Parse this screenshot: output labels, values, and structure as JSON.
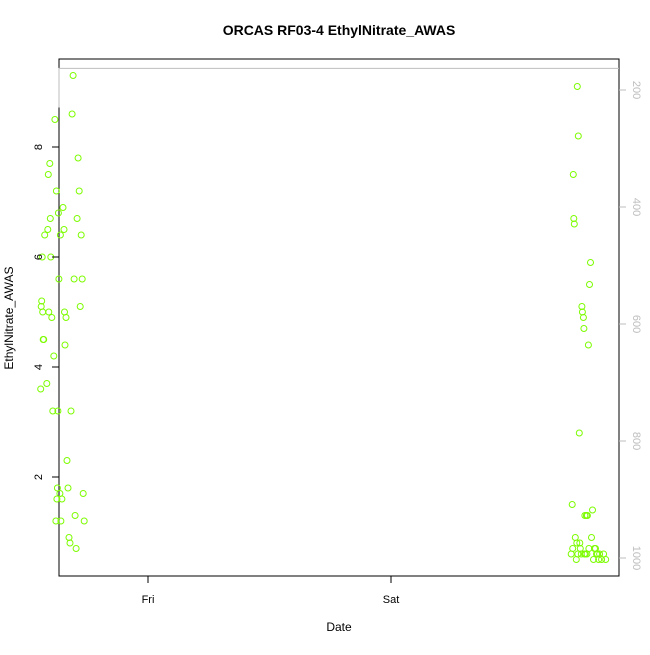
{
  "chart_data": {
    "type": "scatter",
    "title": "ORCAS RF03-4 EthylNitrate_AWAS",
    "xlabel": "Date",
    "ylabel": "EthylNitrate_AWAS",
    "x_ticks": [
      "Fri",
      "Sat"
    ],
    "y_ticks": [
      2,
      4,
      6,
      8
    ],
    "y2_ticks": [
      200,
      400,
      600,
      800,
      1000
    ],
    "ylim": [
      0.2,
      9.6
    ],
    "y2lim": [
      1025,
      163
    ],
    "grid": false,
    "legend": "none",
    "colors": {
      "points": "#7CFC00",
      "line": "#bebebe",
      "axis": "#000000",
      "axis2": "#bebebe"
    },
    "x_unit": "hours since Friday 00:00",
    "series": [
      {
        "style": "points",
        "x": [
          -10.6,
          -10.5,
          -10.45,
          -10.4,
          -10.3,
          -10.2,
          -10.0,
          -9.9,
          -9.85,
          -9.8,
          -9.7,
          -9.6,
          -9.5,
          -9.4,
          -9.3,
          -9.2,
          -9.1,
          -9.0,
          -8.95,
          -8.9,
          -8.85,
          -8.8,
          -8.7,
          -8.6,
          -8.5,
          -8.4,
          -8.3,
          -8.2,
          -8.1,
          -8.0,
          -7.9,
          -7.8,
          -7.7,
          -7.6,
          -7.5,
          -7.4,
          -7.3,
          -7.2,
          -7.1,
          -7.0,
          -6.9,
          -6.8,
          -6.7,
          -6.6,
          -6.5,
          -6.4,
          -6.3,
          -10.55,
          -10.35,
          -9.65,
          -9.05,
          -8.65,
          -8.25
        ],
        "y": [
          3.6,
          5.2,
          6.0,
          5.0,
          4.5,
          6.4,
          3.7,
          6.5,
          7.5,
          5.0,
          7.7,
          6.0,
          4.9,
          3.2,
          4.2,
          8.5,
          1.2,
          1.6,
          1.8,
          3.2,
          6.8,
          5.6,
          1.7,
          1.2,
          1.6,
          6.9,
          6.5,
          4.4,
          4.9,
          2.3,
          1.8,
          0.9,
          0.8,
          3.2,
          8.6,
          9.3,
          5.6,
          1.3,
          0.7,
          6.7,
          7.8,
          7.2,
          5.1,
          6.4,
          5.6,
          1.7,
          1.2,
          5.1,
          4.5,
          6.7,
          7.2,
          6.4,
          5.0
        ]
      },
      {
        "style": "points",
        "x": [
          41.8,
          41.9,
          42.0,
          42.05,
          42.1,
          42.2,
          42.3,
          42.35,
          42.4,
          42.5,
          42.6,
          42.65,
          42.7,
          42.8,
          42.85,
          42.9,
          43.0,
          43.05,
          43.1,
          43.2,
          43.3,
          43.35,
          43.4,
          43.5,
          43.6,
          43.7,
          43.8,
          43.9,
          44.0,
          44.1,
          44.2,
          44.3,
          44.4,
          44.5,
          44.6,
          44.8,
          45.0,
          45.2,
          41.95,
          42.45,
          43.15,
          43.55
        ],
        "y": [
          0.6,
          1.5,
          7.5,
          6.7,
          6.6,
          0.9,
          0.5,
          0.8,
          9.1,
          8.2,
          2.8,
          0.8,
          0.7,
          0.6,
          5.1,
          5.0,
          4.9,
          4.7,
          0.6,
          0.6,
          1.3,
          0.6,
          1.3,
          4.4,
          5.5,
          5.9,
          0.9,
          1.4,
          0.5,
          0.7,
          0.7,
          0.6,
          0.6,
          0.5,
          0.6,
          0.5,
          0.6,
          0.5,
          0.7,
          0.6,
          1.3,
          0.7
        ]
      },
      {
        "style": "line",
        "axis": "right",
        "x": [
          -10.6,
          -10.5,
          -10.4,
          -10.3,
          -10.2,
          -10.0,
          -9.9,
          -9.8,
          -9.7,
          -9.6,
          -9.5,
          -9.45,
          -9.4,
          -9.3,
          -9.2,
          -9.1,
          -9.0,
          -8.95,
          -8.9,
          -8.8,
          -8.7,
          -8.6,
          -8.5,
          -8.4,
          -8.3,
          -8.2,
          -8.1,
          -8.0,
          -7.9,
          -7.8,
          -7.7,
          -7.6,
          -7.5,
          -7.4,
          -7.3,
          -7.2,
          -7.1,
          -7.0,
          -6.9,
          -6.8,
          -6.7,
          -6.6,
          -6.5,
          -6.4,
          -6.3,
          41.8,
          41.9,
          42.0,
          42.2,
          42.4,
          42.6,
          42.7,
          42.8,
          42.9,
          43.0,
          43.2,
          43.4,
          43.6,
          43.8,
          44.0,
          44.2,
          44.4,
          44.6,
          44.8,
          45.0,
          45.2,
          45.4,
          45.5,
          45.6,
          45.8,
          46.0,
          46.2,
          46.4,
          46.6
        ],
        "y": [
          230,
          200,
          163,
          163,
          163,
          163,
          163,
          200,
          163,
          163,
          163,
          163,
          200,
          163,
          163,
          163,
          163,
          163,
          163,
          163,
          163,
          163,
          163,
          163,
          163,
          163,
          163,
          163,
          163,
          163,
          163,
          163,
          163,
          163,
          163,
          163,
          163,
          163,
          163,
          163,
          163,
          163,
          163,
          163,
          163,
          163,
          163,
          163,
          163,
          163,
          163,
          163,
          163,
          163,
          163,
          163,
          163,
          163,
          163,
          163,
          163,
          163,
          163,
          163,
          163,
          163,
          163,
          163,
          163,
          163,
          163,
          163,
          163,
          163
        ]
      }
    ]
  }
}
